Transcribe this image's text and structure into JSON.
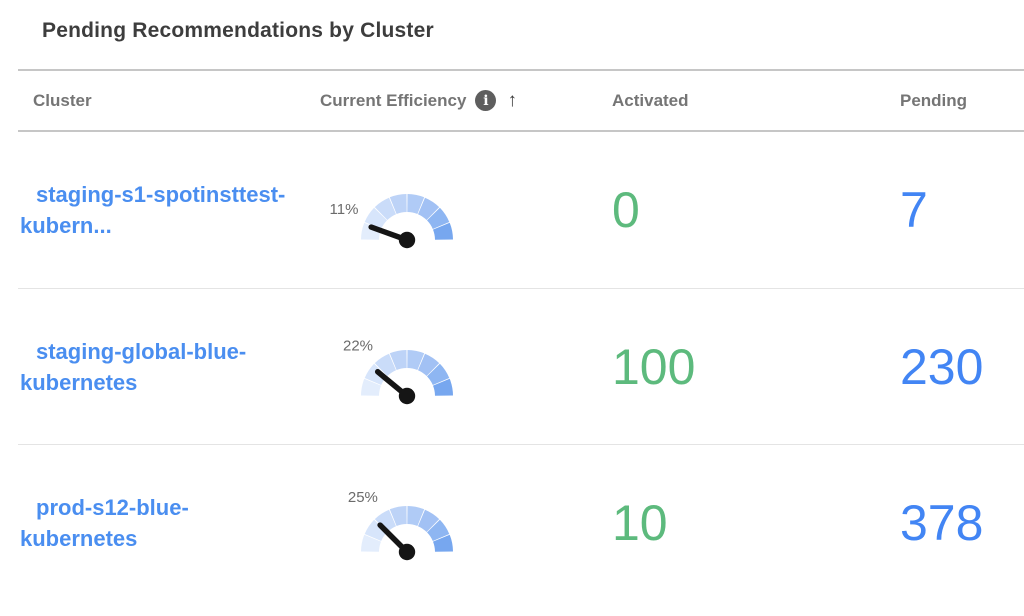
{
  "header": {
    "title": "Pending Recommendations by Cluster"
  },
  "table": {
    "columns": {
      "cluster": "Cluster",
      "efficiency": "Current Efficiency",
      "activated": "Activated",
      "pending": "Pending"
    },
    "info_glyph": "i",
    "sort_arrow": "↑",
    "sort_state": "ascending",
    "rows": [
      {
        "cluster": "staging-s1-spotinsttest-kubern...",
        "efficiency_percent": 11,
        "efficiency_label": "11%",
        "activated": "0",
        "pending": "7"
      },
      {
        "cluster": "staging-global-blue-kubernetes",
        "efficiency_percent": 22,
        "efficiency_label": "22%",
        "activated": "100",
        "pending": "230"
      },
      {
        "cluster": "prod-s12-blue-kubernetes",
        "efficiency_percent": 25,
        "efficiency_label": "25%",
        "activated": "10",
        "pending": "378"
      }
    ]
  },
  "chart_data": [
    {
      "type": "gauge",
      "title": "Current Efficiency - staging-s1-spotinsttest-kubern...",
      "value": 11,
      "unit": "%",
      "range": [
        0,
        100
      ]
    },
    {
      "type": "gauge",
      "title": "Current Efficiency - staging-global-blue-kubernetes",
      "value": 22,
      "unit": "%",
      "range": [
        0,
        100
      ]
    },
    {
      "type": "gauge",
      "title": "Current Efficiency - prod-s12-blue-kubernetes",
      "value": 25,
      "unit": "%",
      "range": [
        0,
        100
      ]
    }
  ],
  "colors": {
    "cluster_link": "#4a8ef0",
    "activated_value": "#5dba7d",
    "pending_value": "#4285f4",
    "gauge_needle": "#151515",
    "gauge_label": "#6b6b6b",
    "gauge_segments": [
      "#e3edfc",
      "#d7e5fb",
      "#cadcf9",
      "#bdd3f7",
      "#b0cbf6",
      "#a2c1f4",
      "#8eb6f2",
      "#77a7ef"
    ]
  }
}
